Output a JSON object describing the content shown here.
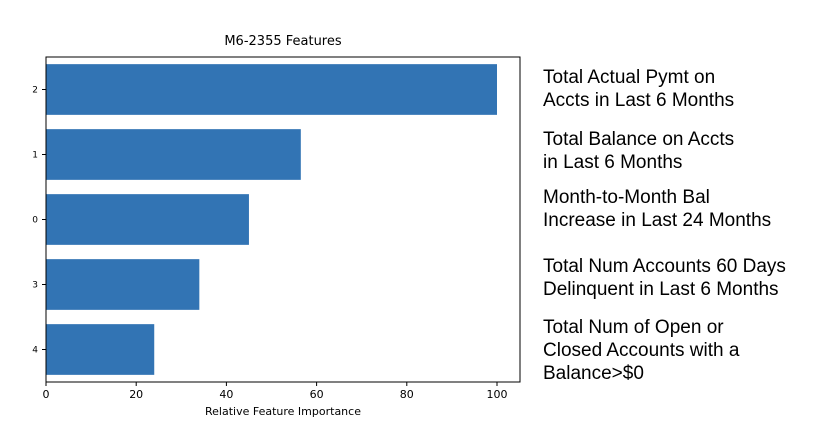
{
  "chart_data": {
    "type": "bar",
    "orientation": "horizontal",
    "title": "M6-2355 Features",
    "xlabel": "Relative Feature Importance",
    "ylabel": "",
    "categories": [
      "2",
      "1",
      "0",
      "3",
      "4"
    ],
    "values": [
      100,
      56.5,
      45,
      34,
      24
    ],
    "xlim": [
      0,
      104
    ],
    "xticks": [
      "0",
      "20",
      "40",
      "60",
      "80",
      "100"
    ],
    "grid": false,
    "bar_color": "#3274b4"
  },
  "annotations": [
    "Total Actual Pymt on\nAccts in Last 6 Months",
    "Total Balance on Accts\nin Last 6 Months",
    "Month-to-Month Bal\nIncrease in Last 24 Months",
    "Total Num Accounts 60 Days\nDelinquent in Last 6 Months",
    "Total Num of Open or\nClosed Accounts with a\nBalance>$0"
  ]
}
